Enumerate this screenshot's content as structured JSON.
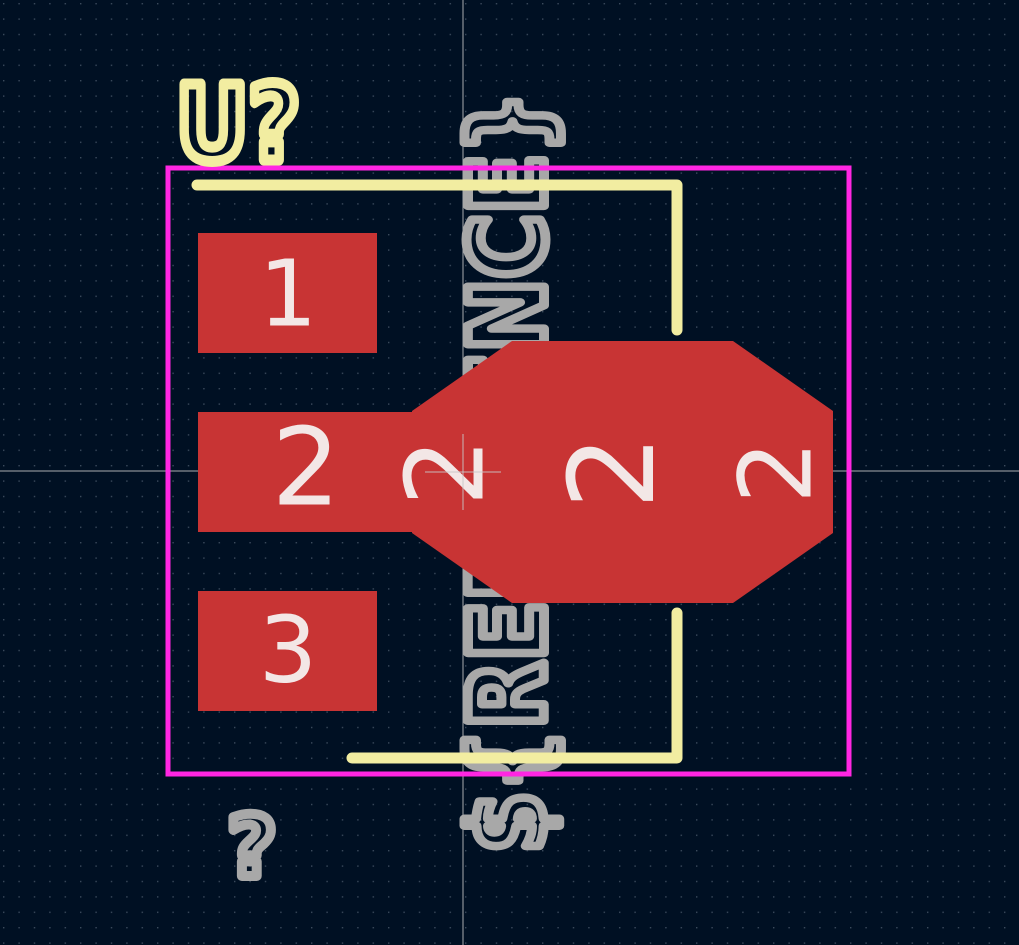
{
  "footprint": {
    "reference": "U?",
    "value": "?",
    "fab_reference": "${REFERENCE}",
    "pads": [
      {
        "number": "1"
      },
      {
        "number": "2"
      },
      {
        "number": "3"
      }
    ],
    "tab_pad_number_labels": [
      "2",
      "2",
      "2"
    ]
  },
  "colors": {
    "background": "#001023",
    "grid_dot": "#3b4a5c",
    "pad": "#c83434",
    "pad_text": "#f3e7e6",
    "silkscreen": "#f2eda1",
    "fab_text": "#a8a8a8",
    "courtyard": "#ff26e2",
    "crosshair": "#c8c8c8"
  }
}
